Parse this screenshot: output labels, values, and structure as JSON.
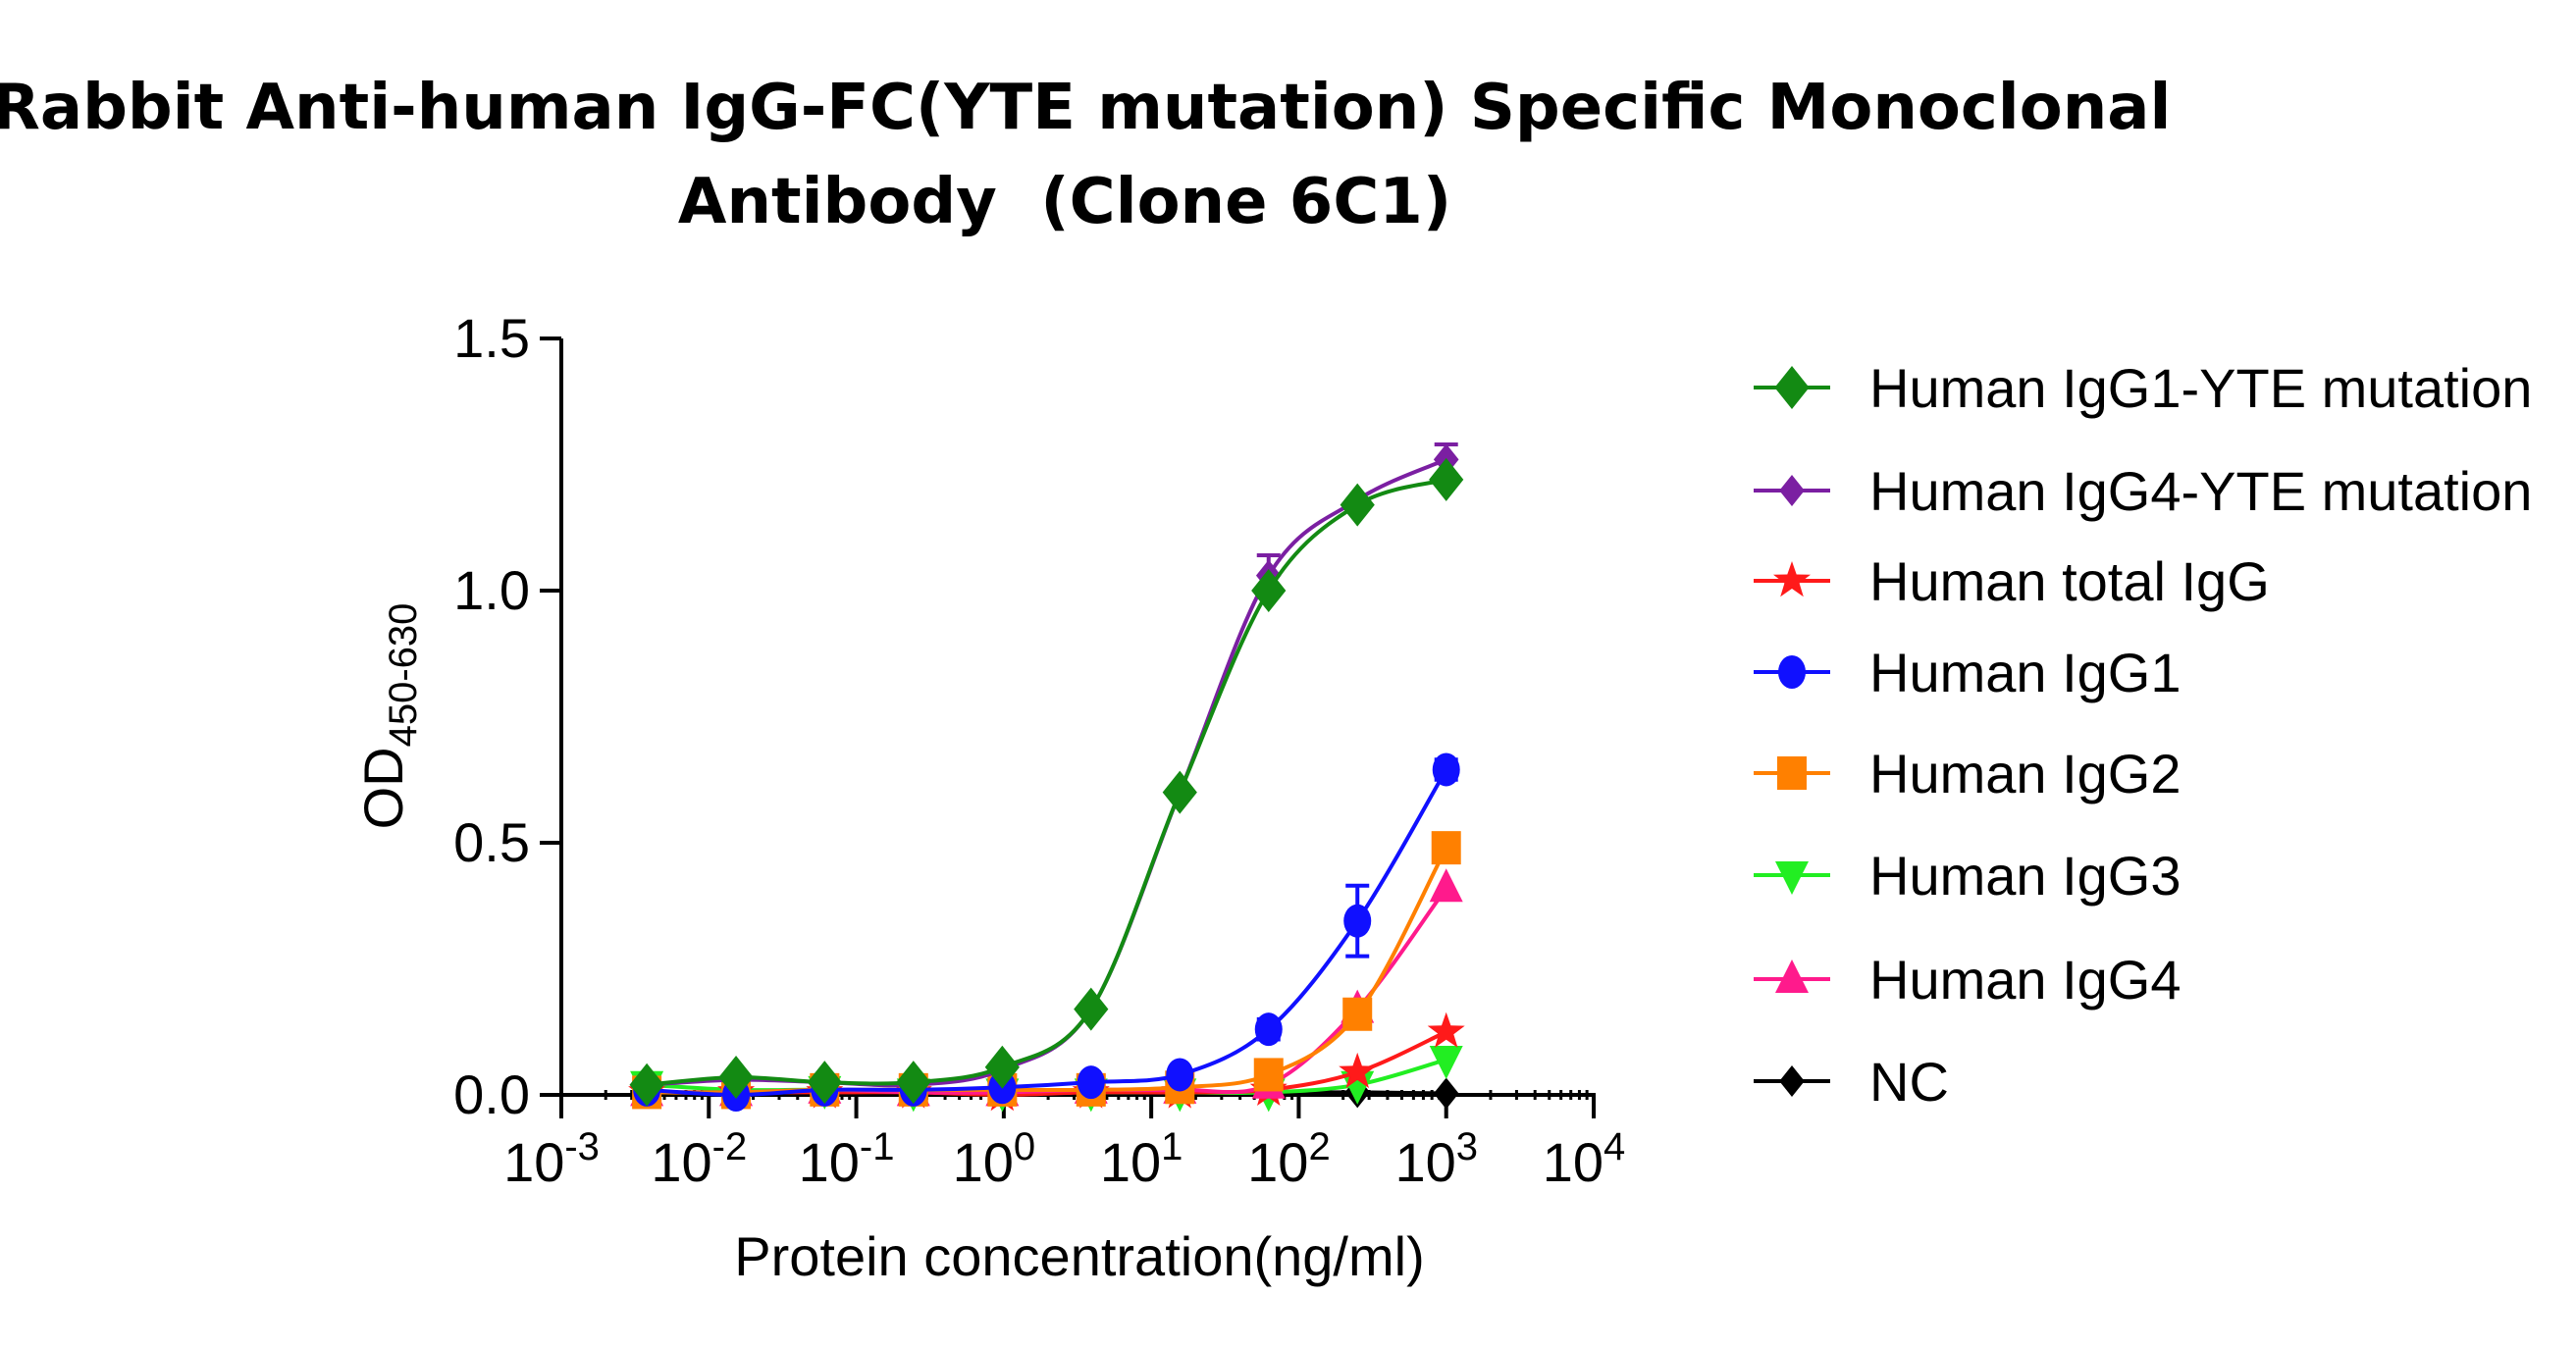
{
  "chart_data": {
    "type": "scatter",
    "title": [
      "Rabbit Anti-human IgG-FC(YTE mutation) Specific Monoclonal",
      "Antibody  (Clone 6C1)"
    ],
    "xlabel": "Protein concentration(ng/ml)",
    "ylabel": {
      "main": "OD",
      "sub": "450-630"
    },
    "xscale": "log",
    "xlim": [
      0.001,
      10000
    ],
    "ylim": [
      0,
      1.5
    ],
    "xticks": [
      {
        "base": "10",
        "exp": "-3"
      },
      {
        "base": "10",
        "exp": "-2"
      },
      {
        "base": "10",
        "exp": "-1"
      },
      {
        "base": "10",
        "exp": "0"
      },
      {
        "base": "10",
        "exp": "1"
      },
      {
        "base": "10",
        "exp": "2"
      },
      {
        "base": "10",
        "exp": "3"
      },
      {
        "base": "10",
        "exp": "4"
      }
    ],
    "yticks": [
      "0.0",
      "0.5",
      "1.0",
      "1.5"
    ],
    "ytick_values": [
      0,
      0.5,
      1.0,
      1.5
    ],
    "legend_position": "right",
    "x": [
      0.0038,
      0.0153,
      0.061,
      0.244,
      0.977,
      3.906,
      15.625,
      62.5,
      250,
      1000
    ],
    "series": [
      {
        "name": "Human IgG1-YTE mutation",
        "color": "#138a13",
        "marker": "diamond",
        "values": [
          0.02,
          0.035,
          0.025,
          0.025,
          0.055,
          0.17,
          0.6,
          1.0,
          1.17,
          1.22
        ]
      },
      {
        "name": "Human IgG4-YTE mutation",
        "color": "#7b1fa2",
        "marker": "diamond-small",
        "values": [
          0.02,
          0.03,
          0.025,
          0.02,
          0.05,
          0.17,
          0.6,
          1.03,
          1.18,
          1.26
        ],
        "errors": [
          0,
          0,
          0,
          0,
          0,
          0,
          0,
          0.04,
          0,
          0.03
        ]
      },
      {
        "name": "Human total IgG",
        "color": "#ff1a1a",
        "marker": "star",
        "values": [
          0.005,
          0.005,
          0.005,
          0.005,
          0.0,
          0.005,
          0.005,
          0.01,
          0.045,
          0.125
        ]
      },
      {
        "name": "Human IgG1",
        "color": "#1010ff",
        "marker": "circle",
        "values": [
          0.01,
          0.0,
          0.01,
          0.01,
          0.015,
          0.025,
          0.04,
          0.13,
          0.345,
          0.645
        ],
        "errors": [
          0,
          0,
          0,
          0,
          0,
          0,
          0,
          0.02,
          0.07,
          0.02
        ]
      },
      {
        "name": "Human IgG2",
        "color": "#ff8000",
        "marker": "square",
        "values": [
          0.005,
          0.005,
          0.01,
          0.01,
          0.01,
          0.01,
          0.015,
          0.04,
          0.16,
          0.49
        ]
      },
      {
        "name": "Human IgG3",
        "color": "#22ee22",
        "marker": "triangle-down",
        "values": [
          0.02,
          0.01,
          0.01,
          0.005,
          0.005,
          0.005,
          0.005,
          0.005,
          0.02,
          0.07
        ]
      },
      {
        "name": "Human IgG4",
        "color": "#ff1a8c",
        "marker": "triangle-up",
        "values": [
          0.005,
          0.005,
          0.01,
          0.005,
          0.005,
          0.01,
          0.01,
          0.02,
          0.17,
          0.41
        ]
      },
      {
        "name": "NC",
        "color": "#000000",
        "marker": "diamond-small",
        "values": [
          0.005,
          0.005,
          0.005,
          0.005,
          0.005,
          0.005,
          0.005,
          0.005,
          0.005,
          0.003
        ]
      }
    ]
  }
}
